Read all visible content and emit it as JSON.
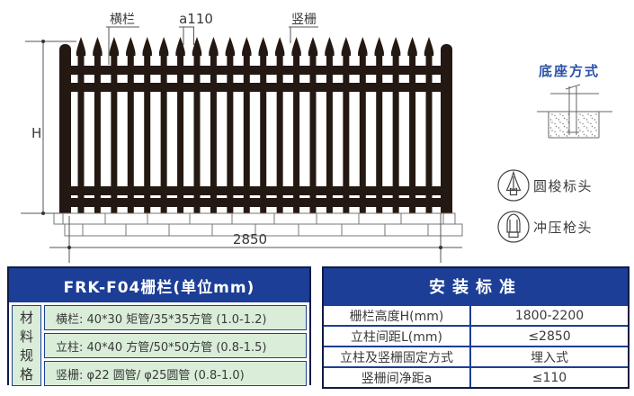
{
  "diagram": {
    "labels": {
      "rail": "横栏",
      "spacing": "a110",
      "picket": "竖栅",
      "height": "H",
      "span": "2850"
    },
    "base_title": "底座方式",
    "heads": [
      {
        "label": "圆梭标头"
      },
      {
        "label": "冲压枪头"
      }
    ]
  },
  "spec_table": {
    "title": "FRK-F04栅栏(单位mm)",
    "side_chars": [
      "材",
      "料",
      "规",
      "格"
    ],
    "rows": [
      "横栏: 40*30 矩管/35*35方管  (1.0-1.2)",
      "立柱: 40*40 方管/50*50方管  (0.8-1.5)",
      "竖栅: φ22 圆管/ φ25圆管 (0.8-1.0)"
    ]
  },
  "install_table": {
    "title": "安装标准",
    "rows": [
      {
        "label": "栅栏高度H(mm)",
        "value": "1800-2200"
      },
      {
        "label": "立柱间距L(mm)",
        "value": "≤2850"
      },
      {
        "label": "立柱及竖栅固定方式",
        "value": "埋入式"
      },
      {
        "label": "竖栅间净距a",
        "value": "≤110"
      }
    ]
  },
  "colors": {
    "header_navy": "#1c3e96",
    "cell_green": "#d9edd9",
    "accent_blue": "#2b52a8",
    "fence_ink": "#241813"
  }
}
